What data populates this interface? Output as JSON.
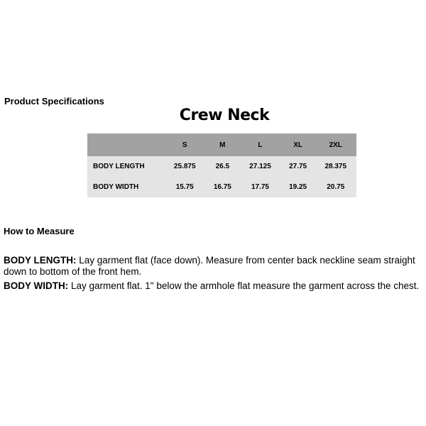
{
  "heading": "Product Specifications",
  "title": "Crew Neck",
  "table": {
    "sizes": [
      "S",
      "M",
      "L",
      "XL",
      "2XL"
    ],
    "rows": [
      {
        "label": "BODY LENGTH",
        "values": [
          "25.875",
          "26.5",
          "27.125",
          "27.75",
          "28.375"
        ]
      },
      {
        "label": "BODY WIDTH",
        "values": [
          "15.75",
          "16.75",
          "17.75",
          "19.25",
          "20.75"
        ]
      }
    ]
  },
  "how_to": {
    "heading": "How to Measure",
    "items": [
      {
        "term": "BODY LENGTH:",
        "text": " Lay garment flat (face down). Measure from center back neckline seam straight down to bottom of the front hem."
      },
      {
        "term": "BODY WIDTH:",
        "text": " Lay garment flat. 1\" below the armhole flat measure the garment across the chest."
      }
    ]
  }
}
